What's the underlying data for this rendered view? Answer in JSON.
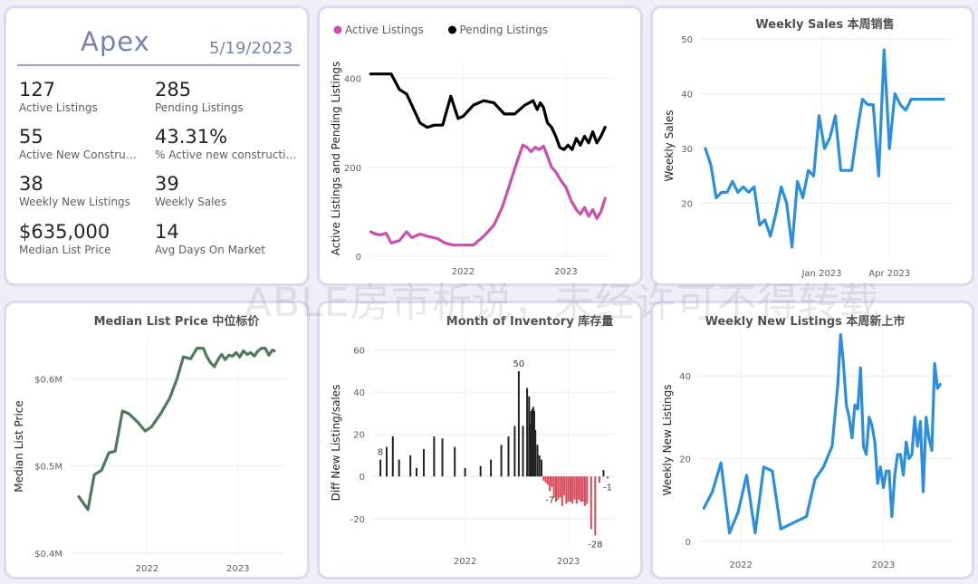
{
  "kpi": {
    "brand": "Apex",
    "date": "5/19/2023",
    "items": [
      {
        "value": "127",
        "label": "Active Listings"
      },
      {
        "value": "285",
        "label": "Pending Listings"
      },
      {
        "value": "55",
        "label": "Active New Constructi..."
      },
      {
        "value": "43.31%",
        "label": "% Active new constructions"
      },
      {
        "value": "38",
        "label": "Weekly New Listings"
      },
      {
        "value": "39",
        "label": "Weekly Sales"
      },
      {
        "value": "$635,000",
        "label": "Median List Price"
      },
      {
        "value": "14",
        "label": "Avg Days On Market"
      }
    ]
  },
  "watermark": "ABLE房市析说，未经许可不得转载",
  "colors": {
    "active": "#cc4fb0",
    "pending": "#000000",
    "blue": "#2b8fde",
    "green": "#4f7a5e",
    "neg": "#d9475a",
    "bar": "#222222"
  },
  "chart_data": [
    {
      "id": "listings",
      "type": "line",
      "title": "",
      "ylabel": "Active Listings and Pending Listings",
      "ylim": [
        0,
        440
      ],
      "xlim": [
        2021.08,
        2023.44
      ],
      "yticks": [
        0,
        200,
        400
      ],
      "xticks": [
        {
          "value": 2022.0,
          "label": "2022"
        },
        {
          "value": 2023.0,
          "label": "2023"
        }
      ],
      "legend": "top-left",
      "series": [
        {
          "name": "Active Listings",
          "color": "#cc4fb0",
          "x": [
            2021.1,
            2021.15,
            2021.2,
            2021.25,
            2021.3,
            2021.38,
            2021.45,
            2021.5,
            2021.58,
            2021.65,
            2021.75,
            2021.82,
            2021.9,
            2022.0,
            2022.1,
            2022.2,
            2022.3,
            2022.38,
            2022.45,
            2022.52,
            2022.58,
            2022.62,
            2022.66,
            2022.7,
            2022.74,
            2022.78,
            2022.82,
            2022.86,
            2022.9,
            2022.95,
            2023.0,
            2023.05,
            2023.1,
            2023.14,
            2023.18,
            2023.22,
            2023.26,
            2023.3,
            2023.34,
            2023.38
          ],
          "y": [
            55,
            50,
            48,
            52,
            30,
            35,
            55,
            42,
            50,
            45,
            40,
            30,
            25,
            25,
            25,
            45,
            70,
            110,
            160,
            210,
            250,
            245,
            235,
            245,
            240,
            248,
            225,
            200,
            190,
            170,
            155,
            125,
            105,
            95,
            110,
            90,
            105,
            85,
            100,
            130
          ]
        },
        {
          "name": "Pending Listings",
          "color": "#000000",
          "x": [
            2021.1,
            2021.2,
            2021.3,
            2021.38,
            2021.45,
            2021.52,
            2021.58,
            2021.65,
            2021.72,
            2021.8,
            2021.88,
            2021.95,
            2022.0,
            2022.1,
            2022.2,
            2022.3,
            2022.4,
            2022.5,
            2022.6,
            2022.68,
            2022.72,
            2022.75,
            2022.78,
            2022.82,
            2022.86,
            2022.9,
            2022.94,
            2022.98,
            2023.02,
            2023.06,
            2023.1,
            2023.14,
            2023.18,
            2023.22,
            2023.26,
            2023.3,
            2023.34,
            2023.38
          ],
          "y": [
            410,
            410,
            410,
            375,
            365,
            330,
            300,
            290,
            295,
            295,
            360,
            310,
            315,
            340,
            350,
            345,
            320,
            320,
            340,
            350,
            330,
            345,
            335,
            300,
            290,
            270,
            245,
            240,
            250,
            240,
            265,
            250,
            270,
            255,
            280,
            255,
            270,
            290
          ]
        }
      ]
    },
    {
      "id": "weekly_sales",
      "type": "line",
      "title": "Weekly Sales 本周销售",
      "ylabel": "Weekly Sales",
      "ylim": [
        10,
        51
      ],
      "xlim": [
        2022.55,
        2023.48
      ],
      "yticks": [
        20,
        30,
        40,
        50
      ],
      "xticks": [
        {
          "value": 2023.0,
          "label": "Jan 2023"
        },
        {
          "value": 2023.25,
          "label": "Apr 2023"
        }
      ],
      "series": [
        {
          "name": "",
          "color": "#2b8fde",
          "x": [
            2022.57,
            2022.59,
            2022.61,
            2022.63,
            2022.65,
            2022.67,
            2022.69,
            2022.71,
            2022.73,
            2022.75,
            2022.77,
            2022.79,
            2022.81,
            2022.83,
            2022.85,
            2022.87,
            2022.89,
            2022.91,
            2022.93,
            2022.95,
            2022.97,
            2022.99,
            2023.01,
            2023.03,
            2023.05,
            2023.07,
            2023.09,
            2023.11,
            2023.13,
            2023.15,
            2023.17,
            2023.19,
            2023.21,
            2023.23,
            2023.25,
            2023.27,
            2023.29,
            2023.31,
            2023.33,
            2023.35,
            2023.37,
            2023.39,
            2023.41,
            2023.43,
            2023.45
          ],
          "y": [
            30,
            27,
            21,
            22,
            22,
            24,
            22,
            23,
            22,
            23,
            16,
            17,
            14,
            18,
            23,
            20,
            12,
            24,
            21,
            26,
            25,
            36,
            30,
            32,
            36,
            26,
            26,
            26,
            33,
            39,
            38,
            38,
            25,
            48,
            30,
            40,
            38,
            37,
            39,
            39,
            39,
            39,
            39,
            39,
            39
          ]
        }
      ]
    },
    {
      "id": "median_price",
      "type": "line",
      "title": "Median List Price  中位标价",
      "ylabel": "Median List Price",
      "ylim": [
        0.4,
        0.645
      ],
      "xlim": [
        2021.15,
        2023.52
      ],
      "yticks": [
        {
          "value": 0.4,
          "label": "$0.4M"
        },
        {
          "value": 0.5,
          "label": "$0.5M"
        },
        {
          "value": 0.6,
          "label": "$0.6M"
        }
      ],
      "xticks": [
        {
          "value": 2022.0,
          "label": "2022"
        },
        {
          "value": 2023.0,
          "label": "2023"
        }
      ],
      "series": [
        {
          "name": "",
          "color": "#4f7a5e",
          "x": [
            2021.25,
            2021.35,
            2021.42,
            2021.5,
            2021.58,
            2021.65,
            2021.73,
            2021.8,
            2021.9,
            2021.98,
            2022.05,
            2022.15,
            2022.25,
            2022.33,
            2022.4,
            2022.48,
            2022.55,
            2022.62,
            2022.66,
            2022.7,
            2022.74,
            2022.78,
            2022.82,
            2022.86,
            2022.9,
            2022.94,
            2022.98,
            2023.02,
            2023.06,
            2023.1,
            2023.14,
            2023.18,
            2023.22,
            2023.26,
            2023.3,
            2023.34,
            2023.38,
            2023.4
          ],
          "y": [
            0.465,
            0.45,
            0.49,
            0.495,
            0.515,
            0.517,
            0.563,
            0.56,
            0.55,
            0.54,
            0.545,
            0.56,
            0.578,
            0.6,
            0.625,
            0.623,
            0.635,
            0.635,
            0.625,
            0.618,
            0.614,
            0.622,
            0.628,
            0.622,
            0.627,
            0.626,
            0.63,
            0.625,
            0.632,
            0.628,
            0.63,
            0.626,
            0.632,
            0.635,
            0.635,
            0.627,
            0.633,
            0.632
          ]
        }
      ]
    },
    {
      "id": "months_inventory",
      "type": "bar",
      "title": "Month of Inventory 库存量",
      "ylabel": "Diff New Listing/sales",
      "ylim": [
        -33,
        65
      ],
      "xlim": [
        2021.1,
        2023.45
      ],
      "yticks": [
        -20,
        0,
        20,
        40,
        60
      ],
      "xticks": [
        {
          "value": 2022.0,
          "label": "2022"
        },
        {
          "value": 2023.0,
          "label": "2023"
        }
      ],
      "x": [
        2021.18,
        2021.24,
        2021.3,
        2021.36,
        2021.47,
        2021.53,
        2021.6,
        2021.7,
        2021.78,
        2021.9,
        2022.0,
        2022.15,
        2022.25,
        2022.35,
        2022.42,
        2022.48,
        2022.52,
        2022.56,
        2022.6,
        2022.62,
        2022.63,
        2022.64,
        2022.65,
        2022.66,
        2022.67,
        2022.68,
        2022.7,
        2022.72,
        2022.74,
        2022.76,
        2022.78,
        2022.8,
        2022.82,
        2022.84,
        2022.86,
        2022.88,
        2022.9,
        2022.92,
        2022.94,
        2022.96,
        2022.98,
        2023.0,
        2023.02,
        2023.04,
        2023.06,
        2023.08,
        2023.1,
        2023.12,
        2023.14,
        2023.16,
        2023.18,
        2023.22,
        2023.26,
        2023.3,
        2023.34,
        2023.38
      ],
      "values": [
        8,
        14,
        19,
        8,
        10,
        4,
        13,
        19,
        18,
        14,
        4,
        5,
        8,
        15,
        19,
        24,
        50,
        24,
        42,
        38,
        25,
        31,
        32,
        33,
        31,
        22,
        15,
        10,
        8,
        -2,
        -3,
        -4,
        -7,
        -5,
        -10,
        -12,
        -11,
        -10,
        -14,
        -9,
        -13,
        -12,
        -12,
        -13,
        -11,
        -13,
        -11,
        -12,
        -12,
        -14,
        -13,
        -25,
        -28,
        -3,
        3,
        -1
      ],
      "data_labels": [
        {
          "index": 0,
          "label": "8"
        },
        {
          "index": 16,
          "label": "50"
        },
        {
          "index": 32,
          "label": "-7"
        },
        {
          "index": 52,
          "label": "-28"
        },
        {
          "index": 55,
          "label": "-1"
        }
      ]
    },
    {
      "id": "weekly_new_listings",
      "type": "line",
      "title": "Weekly New Listings  本周新上市",
      "ylabel": "Weekly New Listings",
      "ylim": [
        -2,
        51
      ],
      "xlim": [
        2021.7,
        2023.48
      ],
      "yticks": [
        0,
        20,
        40
      ],
      "xticks": [
        {
          "value": 2022.0,
          "label": "2022"
        },
        {
          "value": 2023.0,
          "label": "2023"
        }
      ],
      "series": [
        {
          "name": "",
          "color": "#2b8fde",
          "x": [
            2021.74,
            2021.8,
            2021.86,
            2021.92,
            2021.98,
            2022.04,
            2022.1,
            2022.16,
            2022.22,
            2022.28,
            2022.34,
            2022.4,
            2022.46,
            2022.52,
            2022.58,
            2022.64,
            2022.68,
            2022.7,
            2022.72,
            2022.74,
            2022.76,
            2022.78,
            2022.8,
            2022.82,
            2022.84,
            2022.86,
            2022.88,
            2022.9,
            2022.92,
            2022.94,
            2022.96,
            2022.98,
            2023.0,
            2023.02,
            2023.04,
            2023.06,
            2023.08,
            2023.1,
            2023.12,
            2023.14,
            2023.16,
            2023.18,
            2023.2,
            2023.22,
            2023.24,
            2023.26,
            2023.28,
            2023.3,
            2023.32,
            2023.34,
            2023.36,
            2023.38,
            2023.4
          ],
          "y": [
            8,
            12,
            19,
            2,
            7,
            16,
            2,
            18,
            17,
            3,
            4,
            5,
            6,
            15,
            18,
            23,
            38,
            50,
            43,
            33,
            30,
            25,
            33,
            32,
            42,
            23,
            21,
            30,
            28,
            24,
            14,
            18,
            13,
            17,
            17,
            6,
            16,
            21,
            21,
            16,
            24,
            20,
            21,
            30,
            23,
            29,
            12,
            30,
            25,
            22,
            43,
            37,
            38
          ]
        }
      ]
    }
  ]
}
